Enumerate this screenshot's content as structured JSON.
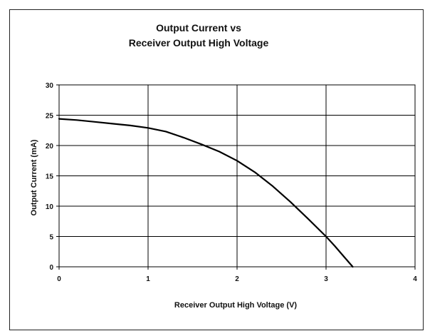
{
  "chart_data": {
    "type": "line",
    "title": "Output Current vs",
    "subtitle": "Receiver Output High Voltage",
    "xlabel": "Receiver Output High Voltage (V)",
    "ylabel": "Output Current (mA)",
    "xlim": [
      0,
      4
    ],
    "ylim": [
      0,
      30
    ],
    "xticks": [
      0,
      1,
      2,
      3,
      4
    ],
    "yticks": [
      0,
      5,
      10,
      15,
      20,
      25,
      30
    ],
    "grid": true,
    "legend": "none",
    "series": [
      {
        "color": "#000000",
        "x": [
          0,
          0.2,
          0.4,
          0.6,
          0.8,
          1.0,
          1.2,
          1.4,
          1.6,
          1.8,
          2.0,
          2.2,
          2.4,
          2.6,
          2.8,
          3.0,
          3.1,
          3.2,
          3.3
        ],
        "y": [
          24.4,
          24.2,
          23.9,
          23.6,
          23.3,
          22.9,
          22.3,
          21.3,
          20.2,
          19.0,
          17.5,
          15.6,
          13.3,
          10.7,
          7.9,
          5.0,
          3.4,
          1.7,
          0
        ]
      }
    ]
  }
}
